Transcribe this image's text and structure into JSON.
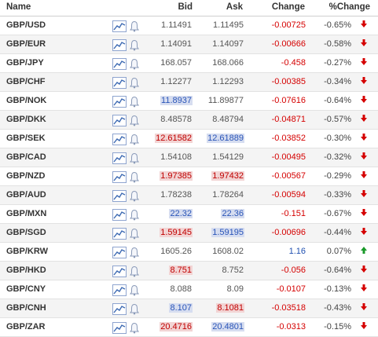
{
  "header": {
    "name": "Name",
    "bid": "Bid",
    "ask": "Ask",
    "change": "Change",
    "pct_change": "%Change"
  },
  "colors": {
    "down": "#d50000",
    "up": "#1a9a2a",
    "icon": "#4a6fb0"
  },
  "rows": [
    {
      "symbol": "GBP/USD",
      "bid": "1.11491",
      "ask": "1.11495",
      "change": "-0.00725",
      "pct": "-0.65%",
      "dir": "down",
      "bid_hl": "",
      "ask_hl": ""
    },
    {
      "symbol": "GBP/EUR",
      "bid": "1.14091",
      "ask": "1.14097",
      "change": "-0.00666",
      "pct": "-0.58%",
      "dir": "down",
      "bid_hl": "",
      "ask_hl": ""
    },
    {
      "symbol": "GBP/JPY",
      "bid": "168.057",
      "ask": "168.066",
      "change": "-0.458",
      "pct": "-0.27%",
      "dir": "down",
      "bid_hl": "",
      "ask_hl": ""
    },
    {
      "symbol": "GBP/CHF",
      "bid": "1.12277",
      "ask": "1.12293",
      "change": "-0.00385",
      "pct": "-0.34%",
      "dir": "down",
      "bid_hl": "",
      "ask_hl": ""
    },
    {
      "symbol": "GBP/NOK",
      "bid": "11.8937",
      "ask": "11.89877",
      "change": "-0.07616",
      "pct": "-0.64%",
      "dir": "down",
      "bid_hl": "blue",
      "ask_hl": ""
    },
    {
      "symbol": "GBP/DKK",
      "bid": "8.48578",
      "ask": "8.48794",
      "change": "-0.04871",
      "pct": "-0.57%",
      "dir": "down",
      "bid_hl": "",
      "ask_hl": ""
    },
    {
      "symbol": "GBP/SEK",
      "bid": "12.61582",
      "ask": "12.61889",
      "change": "-0.03852",
      "pct": "-0.30%",
      "dir": "down",
      "bid_hl": "red",
      "ask_hl": "blue"
    },
    {
      "symbol": "GBP/CAD",
      "bid": "1.54108",
      "ask": "1.54129",
      "change": "-0.00495",
      "pct": "-0.32%",
      "dir": "down",
      "bid_hl": "",
      "ask_hl": ""
    },
    {
      "symbol": "GBP/NZD",
      "bid": "1.97385",
      "ask": "1.97432",
      "change": "-0.00567",
      "pct": "-0.29%",
      "dir": "down",
      "bid_hl": "red",
      "ask_hl": "red"
    },
    {
      "symbol": "GBP/AUD",
      "bid": "1.78238",
      "ask": "1.78264",
      "change": "-0.00594",
      "pct": "-0.33%",
      "dir": "down",
      "bid_hl": "",
      "ask_hl": ""
    },
    {
      "symbol": "GBP/MXN",
      "bid": "22.32",
      "ask": "22.36",
      "change": "-0.151",
      "pct": "-0.67%",
      "dir": "down",
      "bid_hl": "blue",
      "ask_hl": "blue"
    },
    {
      "symbol": "GBP/SGD",
      "bid": "1.59145",
      "ask": "1.59195",
      "change": "-0.00696",
      "pct": "-0.44%",
      "dir": "down",
      "bid_hl": "red",
      "ask_hl": "blue"
    },
    {
      "symbol": "GBP/KRW",
      "bid": "1605.26",
      "ask": "1608.02",
      "change": "1.16",
      "pct": "0.07%",
      "dir": "up",
      "bid_hl": "",
      "ask_hl": ""
    },
    {
      "symbol": "GBP/HKD",
      "bid": "8.751",
      "ask": "8.752",
      "change": "-0.056",
      "pct": "-0.64%",
      "dir": "down",
      "bid_hl": "red",
      "ask_hl": ""
    },
    {
      "symbol": "GBP/CNY",
      "bid": "8.088",
      "ask": "8.09",
      "change": "-0.0107",
      "pct": "-0.13%",
      "dir": "down",
      "bid_hl": "",
      "ask_hl": ""
    },
    {
      "symbol": "GBP/CNH",
      "bid": "8.107",
      "ask": "8.1081",
      "change": "-0.03518",
      "pct": "-0.43%",
      "dir": "down",
      "bid_hl": "blue",
      "ask_hl": "red"
    },
    {
      "symbol": "GBP/ZAR",
      "bid": "20.4716",
      "ask": "20.4801",
      "change": "-0.0313",
      "pct": "-0.15%",
      "dir": "down",
      "bid_hl": "red",
      "ask_hl": "blue"
    }
  ]
}
